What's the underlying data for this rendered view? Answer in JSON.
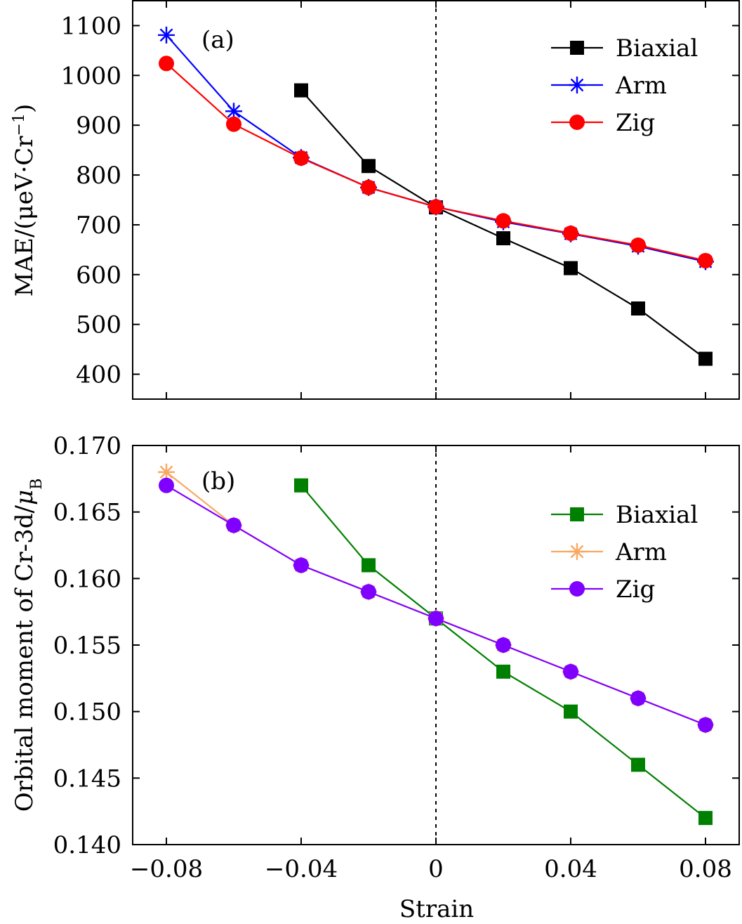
{
  "figure": {
    "xlabel": "Strain",
    "x_tick_labels": [
      "−0.08",
      "−0.04",
      "0",
      "0.04",
      "0.08"
    ]
  },
  "chart_data": [
    {
      "type": "line",
      "panel_label": "(a)",
      "ylabel": "MAE/(μeV·Cr",
      "ylabel_superscript": "−1",
      "ylabel_close": ")",
      "xlim": [
        -0.09,
        0.09
      ],
      "ylim": [
        350,
        1150
      ],
      "x_ticks": [
        -0.08,
        -0.04,
        0,
        0.04,
        0.08
      ],
      "y_ticks": [
        400,
        500,
        600,
        700,
        800,
        900,
        1000,
        1100
      ],
      "y_tick_labels": [
        "400",
        "500",
        "600",
        "700",
        "800",
        "900",
        "1000",
        "1100"
      ],
      "reference_line_x": 0,
      "legend_position": "top-right",
      "series": [
        {
          "name": "Biaxial",
          "color": "#000000",
          "marker": "square",
          "x": [
            -0.04,
            -0.02,
            0,
            0.02,
            0.04,
            0.06,
            0.08
          ],
          "y": [
            970,
            818,
            735,
            673,
            613,
            532,
            431
          ]
        },
        {
          "name": "Arm",
          "color": "#0000ff",
          "marker": "asterisk",
          "x": [
            -0.08,
            -0.06,
            -0.04,
            -0.02,
            0,
            0.02,
            0.04,
            0.06,
            0.08
          ],
          "y": [
            1081,
            928,
            835,
            775,
            736,
            706,
            682,
            657,
            626
          ]
        },
        {
          "name": "Zig",
          "color": "#ff0000",
          "marker": "circle",
          "x": [
            -0.08,
            -0.06,
            -0.04,
            -0.02,
            0,
            0.02,
            0.04,
            0.06,
            0.08
          ],
          "y": [
            1024,
            902,
            834,
            775,
            736,
            708,
            683,
            659,
            628
          ]
        }
      ]
    },
    {
      "type": "line",
      "panel_label": "(b)",
      "ylabel": "Orbital moment of Cr-3d/",
      "ylabel_symbol": "μ",
      "ylabel_subscript": "B",
      "xlim": [
        -0.09,
        0.09
      ],
      "ylim": [
        0.14,
        0.17
      ],
      "x_ticks": [
        -0.08,
        -0.04,
        0,
        0.04,
        0.08
      ],
      "y_ticks": [
        0.14,
        0.145,
        0.15,
        0.155,
        0.16,
        0.165,
        0.17
      ],
      "y_tick_labels": [
        "0.140",
        "0.145",
        "0.150",
        "0.155",
        "0.160",
        "0.165",
        "0.170"
      ],
      "reference_line_x": 0,
      "legend_position": "right",
      "series": [
        {
          "name": "Biaxial",
          "color": "#008000",
          "marker": "square",
          "x": [
            -0.04,
            -0.02,
            0,
            0.02,
            0.04,
            0.06,
            0.08
          ],
          "y": [
            0.167,
            0.161,
            0.157,
            0.153,
            0.15,
            0.146,
            0.142
          ]
        },
        {
          "name": "Arm",
          "color": "#f8a860",
          "marker": "asterisk",
          "x": [
            -0.08,
            -0.06,
            -0.04,
            -0.02,
            0,
            0.02,
            0.04,
            0.06,
            0.08
          ],
          "y": [
            0.168,
            0.164,
            0.161,
            0.159,
            0.157,
            0.155,
            0.153,
            0.151,
            0.149
          ]
        },
        {
          "name": "Zig",
          "color": "#8000ff",
          "marker": "circle",
          "x": [
            -0.08,
            -0.06,
            -0.04,
            -0.02,
            0,
            0.02,
            0.04,
            0.06,
            0.08
          ],
          "y": [
            0.167,
            0.164,
            0.161,
            0.159,
            0.157,
            0.155,
            0.153,
            0.151,
            0.149
          ]
        }
      ]
    }
  ]
}
